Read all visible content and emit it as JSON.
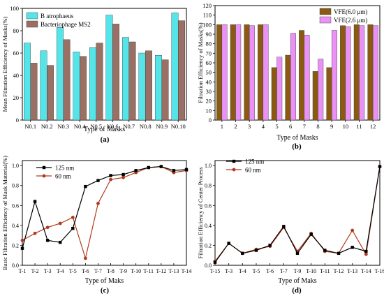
{
  "panels": [
    "(a)",
    "(b)",
    "(c)",
    "(d)"
  ],
  "chart_data": [
    {
      "panel": "(a)",
      "type": "bar",
      "xlabel": "Type of Masks",
      "ylabel": "Mean Filtration Efficiency of  Masks(%)",
      "ylim": [
        0,
        100
      ],
      "yticks": [
        0,
        20,
        40,
        60,
        80,
        100
      ],
      "categories": [
        "N0.1",
        "N0.2",
        "N0.3",
        "N0.4",
        "N0.5",
        "N0.6",
        "N0.7",
        "N0.8",
        "N0.9",
        "N0.10"
      ],
      "series": [
        {
          "name": "B atrophaeus",
          "color": "#55e5e9",
          "values": [
            69,
            62,
            83,
            61,
            65,
            94,
            74,
            60,
            58,
            96
          ]
        },
        {
          "name": "Bacteriophage MS2",
          "color": "#9a6f64",
          "values": [
            51,
            49,
            72,
            57,
            69,
            86,
            70,
            62,
            54,
            89
          ]
        }
      ],
      "legend": "top-left"
    },
    {
      "panel": "(b)",
      "type": "bar",
      "xlabel": "Type of Masks",
      "ylabel": "Filtration Efficiency of  Masks(%)",
      "ylim": [
        0,
        120
      ],
      "yticks": [
        0,
        10,
        20,
        30,
        40,
        50,
        60,
        70,
        80,
        90,
        100,
        110,
        120
      ],
      "categories": [
        "1",
        "2",
        "3",
        "4",
        "5",
        "6",
        "7",
        "8",
        "9",
        "10",
        "11",
        "12"
      ],
      "series": [
        {
          "name": "VFE(6.0 μm)",
          "color": "#8b5a12",
          "values": [
            100,
            100,
            100,
            100,
            55,
            68,
            94,
            51,
            55,
            99,
            100,
            100
          ]
        },
        {
          "name": "VFE(2.6 μm)",
          "color": "#e991f4",
          "values": [
            100,
            100,
            99,
            100,
            66,
            91,
            89,
            64,
            94,
            98,
            99,
            99
          ]
        }
      ],
      "legend": "top-right"
    },
    {
      "panel": "(c)",
      "type": "line",
      "xlabel": "Type of Maks",
      "ylabel": "Basic Filtration Efficiency of Mask Material(%)",
      "ylim": [
        0,
        1.05
      ],
      "yticks": [
        0.0,
        0.2,
        0.4,
        0.6,
        0.8,
        1.0
      ],
      "categories": [
        "T-1",
        "T-2",
        "T-3",
        "T-4",
        "T-5",
        "T-6",
        "T-7",
        "T-8",
        "T-9",
        "T-10",
        "T-11",
        "T-12",
        "T-13",
        "T-14"
      ],
      "series": [
        {
          "name": "125 nm",
          "color": "#000000",
          "marker": "square",
          "values": [
            0.17,
            0.64,
            0.25,
            0.23,
            0.37,
            0.79,
            0.85,
            0.9,
            0.91,
            0.95,
            0.98,
            0.99,
            0.95,
            0.96
          ]
        },
        {
          "name": "60 nm",
          "color": "#b23a1a",
          "marker": "circle",
          "values": [
            0.25,
            0.32,
            0.38,
            0.42,
            0.48,
            0.07,
            0.62,
            0.86,
            0.88,
            0.93,
            0.98,
            0.99,
            0.93,
            0.95
          ]
        }
      ],
      "legend": "top-left"
    },
    {
      "panel": "(d)",
      "type": "line",
      "xlabel": "Type of Maks",
      "ylabel": "Filtration Efficiency of Center Process",
      "ylim": [
        0,
        1.05
      ],
      "yticks": [
        0.0,
        0.2,
        0.4,
        0.6,
        0.8,
        1.0
      ],
      "categories": [
        "T-15",
        "T-3",
        "T-4",
        "T-5",
        "T-6",
        "T-7",
        "T-9",
        "T-10",
        "T-11",
        "T-12",
        "T-13",
        "T-14",
        "T-16"
      ],
      "series": [
        {
          "name": "125 nm",
          "color": "#000000",
          "marker": "square",
          "values": [
            0.03,
            0.22,
            0.12,
            0.15,
            0.2,
            0.39,
            0.12,
            0.31,
            0.15,
            0.12,
            0.18,
            0.14,
            0.99
          ]
        },
        {
          "name": "60 nm",
          "color": "#b23a1a",
          "marker": "circle",
          "values": [
            0.04,
            0.22,
            0.12,
            0.16,
            0.19,
            0.38,
            0.14,
            0.32,
            0.14,
            0.12,
            0.35,
            0.11,
            0.99
          ]
        }
      ],
      "legend": "top-left"
    }
  ]
}
